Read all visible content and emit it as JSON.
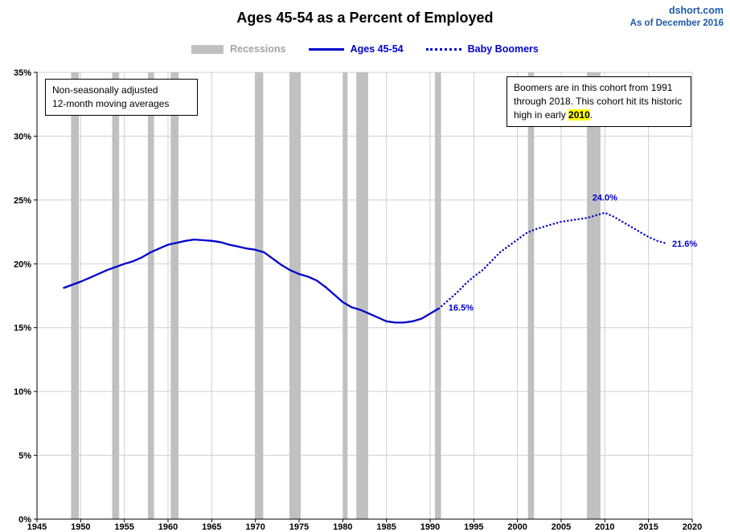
{
  "header": {
    "title": "Ages 45-54 as a Percent of Employed",
    "source": "dshort.com",
    "as_of": "As of December 2016"
  },
  "legend": {
    "items": [
      {
        "label": "Recessions"
      },
      {
        "label": "Ages 45-54"
      },
      {
        "label": "Baby Boomers"
      }
    ]
  },
  "annotation_boxes": {
    "left": {
      "line1": "Non-seasonally adjusted",
      "line2": "12-month moving averages"
    },
    "right": {
      "pre": "Boomers are in this cohort from 1991  through 2018.  This cohort hit its historic high in early ",
      "highlight": "2010",
      "post": "."
    }
  },
  "colors": {
    "accent_blue": "#0000cc",
    "header_blue": "#1e5aa8",
    "recession_gray": "#c0c0c0",
    "grid_gray": "#cfcfcf",
    "axis_black": "#000000",
    "legend_gray_text": "#a3a3a3",
    "highlight_yellow": "#ffff00"
  },
  "chart_data": {
    "type": "line",
    "title": "Ages 45-54 as a Percent of Employed",
    "xlabel": "",
    "ylabel": "",
    "xlim": [
      1945,
      2020
    ],
    "ylim": [
      0,
      35
    ],
    "x_ticks": [
      1945,
      1950,
      1955,
      1960,
      1965,
      1970,
      1975,
      1980,
      1985,
      1990,
      1995,
      2000,
      2005,
      2010,
      2015,
      2020
    ],
    "y_ticks": [
      0,
      5,
      10,
      15,
      20,
      25,
      30,
      35
    ],
    "y_tick_suffix": "%",
    "grid": true,
    "legend_position": "top",
    "recessions": [
      [
        1948.9,
        1949.8
      ],
      [
        1953.6,
        1954.4
      ],
      [
        1957.7,
        1958.4
      ],
      [
        1960.3,
        1961.2
      ],
      [
        1969.95,
        1970.9
      ],
      [
        1973.9,
        1975.2
      ],
      [
        1980.05,
        1980.55
      ],
      [
        1981.55,
        1982.9
      ],
      [
        1990.55,
        1991.25
      ],
      [
        2001.2,
        2001.9
      ],
      [
        2007.95,
        2009.5
      ]
    ],
    "series": [
      {
        "name": "Ages 45-54",
        "style": "solid",
        "color": "#0000cc",
        "points": [
          [
            1948,
            18.1
          ],
          [
            1949,
            18.35
          ],
          [
            1950,
            18.6
          ],
          [
            1951,
            18.9
          ],
          [
            1952,
            19.2
          ],
          [
            1953,
            19.5
          ],
          [
            1954,
            19.75
          ],
          [
            1955,
            20.0
          ],
          [
            1956,
            20.2
          ],
          [
            1957,
            20.5
          ],
          [
            1958,
            20.9
          ],
          [
            1959,
            21.2
          ],
          [
            1960,
            21.5
          ],
          [
            1961,
            21.65
          ],
          [
            1962,
            21.8
          ],
          [
            1963,
            21.9
          ],
          [
            1964,
            21.85
          ],
          [
            1965,
            21.8
          ],
          [
            1966,
            21.7
          ],
          [
            1967,
            21.5
          ],
          [
            1968,
            21.35
          ],
          [
            1969,
            21.2
          ],
          [
            1970,
            21.1
          ],
          [
            1971,
            20.9
          ],
          [
            1972,
            20.4
          ],
          [
            1973,
            19.9
          ],
          [
            1974,
            19.5
          ],
          [
            1975,
            19.2
          ],
          [
            1976,
            19.0
          ],
          [
            1977,
            18.7
          ],
          [
            1978,
            18.2
          ],
          [
            1979,
            17.6
          ],
          [
            1980,
            17.0
          ],
          [
            1981,
            16.6
          ],
          [
            1982,
            16.4
          ],
          [
            1983,
            16.1
          ],
          [
            1984,
            15.8
          ],
          [
            1985,
            15.5
          ],
          [
            1986,
            15.4
          ],
          [
            1987,
            15.4
          ],
          [
            1988,
            15.5
          ],
          [
            1989,
            15.7
          ],
          [
            1990,
            16.1
          ],
          [
            1991,
            16.5
          ]
        ]
      },
      {
        "name": "Baby Boomers",
        "style": "dotted",
        "color": "#0000cc",
        "points": [
          [
            1991,
            16.5
          ],
          [
            1992,
            17.1
          ],
          [
            1993,
            17.7
          ],
          [
            1994,
            18.4
          ],
          [
            1995,
            19.0
          ],
          [
            1996,
            19.5
          ],
          [
            1997,
            20.2
          ],
          [
            1998,
            20.9
          ],
          [
            1999,
            21.4
          ],
          [
            2000,
            21.9
          ],
          [
            2001,
            22.4
          ],
          [
            2002,
            22.7
          ],
          [
            2003,
            22.9
          ],
          [
            2004,
            23.1
          ],
          [
            2005,
            23.3
          ],
          [
            2006,
            23.4
          ],
          [
            2007,
            23.5
          ],
          [
            2008,
            23.6
          ],
          [
            2009,
            23.8
          ],
          [
            2010,
            24.0
          ],
          [
            2011,
            23.7
          ],
          [
            2012,
            23.3
          ],
          [
            2013,
            22.9
          ],
          [
            2014,
            22.5
          ],
          [
            2015,
            22.1
          ],
          [
            2016,
            21.8
          ],
          [
            2017,
            21.6
          ]
        ]
      }
    ],
    "point_labels": [
      {
        "text": "16.5%",
        "x": 1992.1,
        "y": 16.6,
        "anchor": "start"
      },
      {
        "text": "24.0%",
        "x": 2010.0,
        "y": 25.2,
        "anchor": "middle"
      },
      {
        "text": "21.6%",
        "x": 2017.7,
        "y": 21.6,
        "anchor": "start"
      }
    ]
  }
}
